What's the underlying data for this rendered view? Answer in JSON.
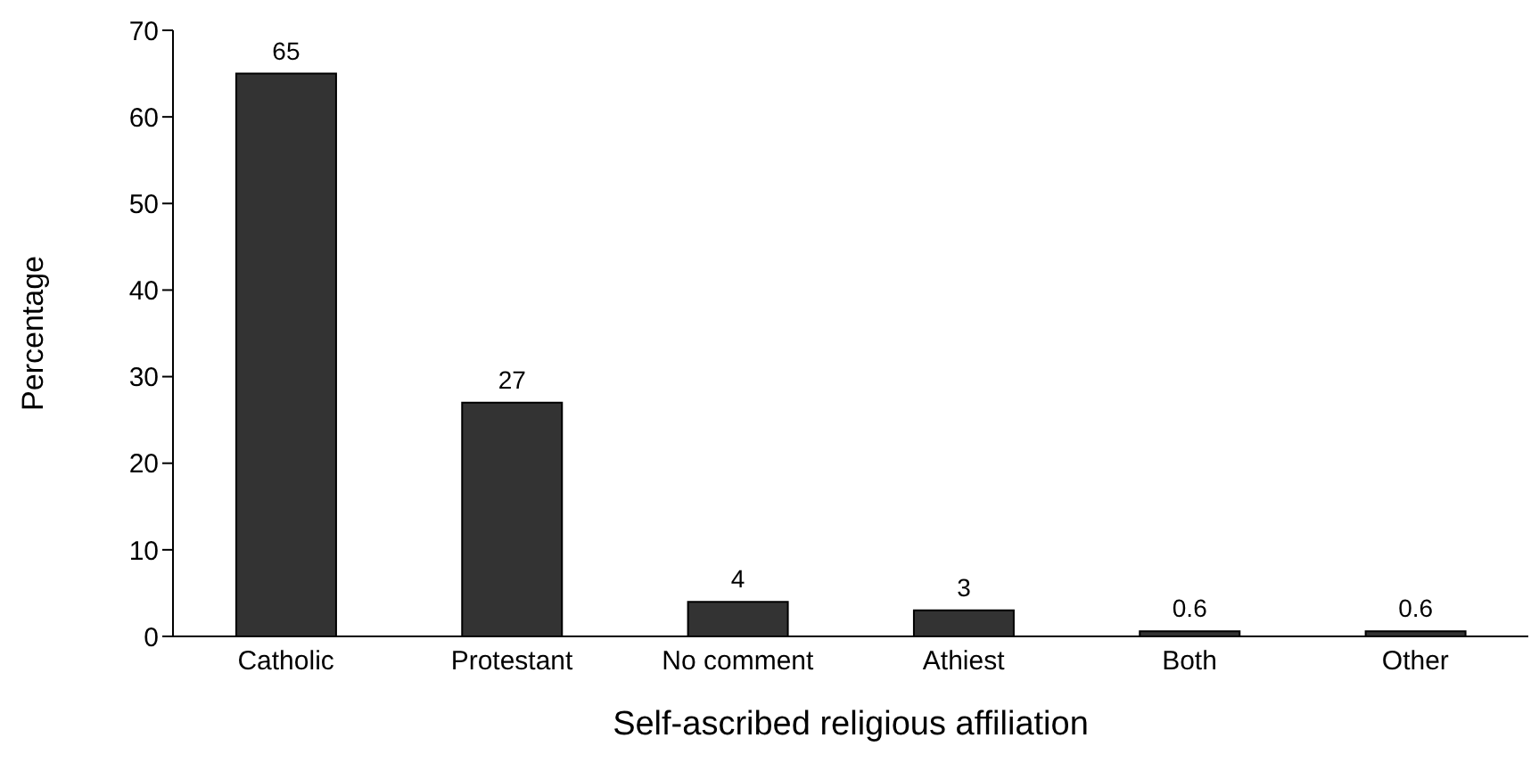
{
  "chart_data": {
    "type": "bar",
    "xlabel": "Self-ascribed religious affiliation",
    "ylabel": "Percentage",
    "categories": [
      "Catholic",
      "Protestant",
      "No comment",
      "Athiest",
      "Both",
      "Other"
    ],
    "values": [
      65,
      27,
      4,
      3,
      0.6,
      0.6
    ],
    "color": "#333333",
    "data_labels": true,
    "ylim": [
      0,
      70
    ],
    "yticks": [
      0,
      10,
      20,
      30,
      40,
      50,
      60,
      70
    ],
    "grid": false
  }
}
